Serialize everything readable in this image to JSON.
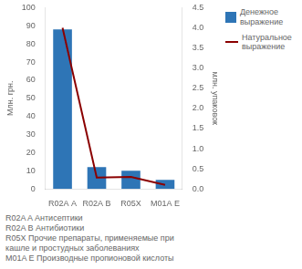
{
  "chart_data": {
    "type": "bar",
    "categories": [
      "R02A A",
      "R02A B",
      "R05X",
      "M01A E"
    ],
    "series": [
      {
        "name": "Денежное\nвыражение",
        "type": "bar",
        "color": "#2E75B6",
        "values": [
          88,
          12,
          10,
          5
        ]
      },
      {
        "name": "Натуральное\nвыражение",
        "type": "line",
        "color": "#8B0000",
        "axis": "y2",
        "marker": "none",
        "values": [
          4.0,
          0.28,
          0.3,
          0.1
        ]
      }
    ],
    "ylabel": "Млн. грн.",
    "y2label": "млн. упаковок",
    "ylim": [
      0,
      100
    ],
    "yticks": [
      0,
      10,
      20,
      30,
      40,
      50,
      60,
      70,
      80,
      90,
      100
    ],
    "y2lim": [
      0,
      4.5
    ],
    "y2ticks": [
      {
        "value": 0,
        "label": "0.0"
      },
      0.5,
      {
        "value": 1.0,
        "label": "1.0"
      },
      1.5,
      {
        "value": 2.0,
        "label": "2.0"
      },
      2.5,
      {
        "value": 3.0,
        "label": "3.0"
      },
      3.5,
      {
        "value": 4.0,
        "label": "4.0"
      },
      4.5
    ],
    "grid": false,
    "legend": "right",
    "annotations": [
      "R02A A Антисептики",
      "R02A B Антибиотики",
      "R05X Прочие препараты, применяемые при",
      "кашле и простудных заболеваниях",
      "M01A E Производные пропионовой кислоты"
    ]
  }
}
